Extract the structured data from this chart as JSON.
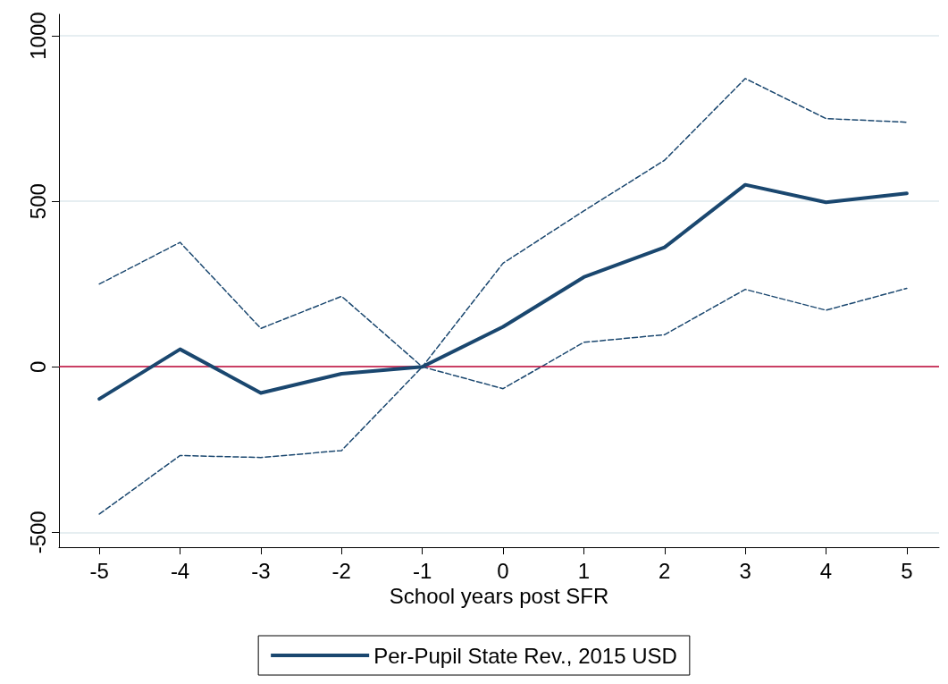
{
  "chart_data": {
    "type": "line",
    "xlabel": "School years post SFR",
    "x": [
      -5,
      -4,
      -3,
      -2,
      -1,
      0,
      1,
      2,
      3,
      4,
      5
    ],
    "series": [
      {
        "name": "Per-Pupil State Rev., 2015 USD",
        "color": "#1a476f",
        "values": [
          -97,
          53,
          -79,
          -21,
          0,
          121,
          271,
          361,
          550,
          497,
          524
        ],
        "line_style": "solid"
      },
      {
        "color": "#1a476f",
        "values": [
          250,
          376,
          116,
          213,
          0,
          313,
          471,
          624,
          871,
          750,
          739
        ],
        "line_style": "dashed"
      },
      {
        "color": "#1a476f",
        "values": [
          -445,
          -268,
          -274,
          -253,
          0,
          -66,
          74,
          97,
          234,
          171,
          237
        ],
        "line_style": "dashed"
      }
    ],
    "xlim": [
      -5.5,
      5.4
    ],
    "xticks": [
      -5,
      -4,
      -3,
      -2,
      -1,
      0,
      1,
      2,
      3,
      4,
      5
    ],
    "ylim": [
      -545,
      1065
    ],
    "yticks": [
      -500,
      0,
      500,
      1000
    ],
    "ref_lines": [
      {
        "axis": "y",
        "value": 0,
        "color": "#c10534"
      }
    ],
    "grid": "y",
    "legend": "bottom",
    "marker": "none"
  }
}
